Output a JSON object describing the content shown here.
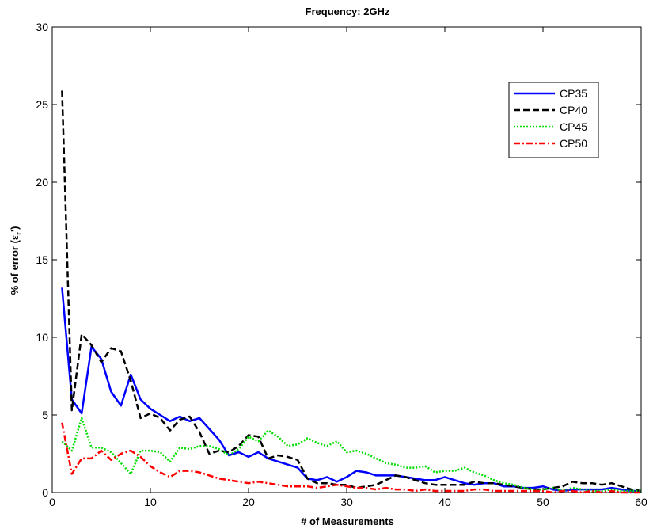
{
  "chart_data": {
    "type": "line",
    "title": "Frequency: 2GHz",
    "xlabel": "# of Measurements",
    "ylabel": "% of error (εr')",
    "ylabel_main": "% of error (ε",
    "ylabel_sub": "r",
    "ylabel_end": "')",
    "xlim": [
      0,
      60
    ],
    "ylim": [
      0,
      30
    ],
    "xticks": [
      0,
      10,
      20,
      30,
      40,
      50,
      60
    ],
    "yticks": [
      0,
      5,
      10,
      15,
      20,
      25,
      30
    ],
    "grid": false,
    "legend_position": "top-right",
    "series": [
      {
        "name": "CP35",
        "color": "#0000ff",
        "style": "solid",
        "x": [
          1,
          2,
          3,
          4,
          5,
          6,
          7,
          8,
          9,
          10,
          11,
          12,
          13,
          14,
          15,
          16,
          17,
          18,
          19,
          20,
          21,
          22,
          23,
          24,
          25,
          26,
          27,
          28,
          29,
          30,
          31,
          32,
          33,
          34,
          35,
          36,
          37,
          38,
          39,
          40,
          41,
          42,
          43,
          44,
          45,
          46,
          47,
          48,
          49,
          50,
          51,
          52,
          53,
          54,
          55,
          56,
          57,
          58,
          59,
          60
        ],
        "values": [
          13.2,
          6.0,
          5.1,
          9.4,
          8.6,
          6.5,
          5.6,
          7.6,
          6.0,
          5.4,
          5.0,
          4.6,
          4.9,
          4.6,
          4.8,
          4.1,
          3.4,
          2.4,
          2.6,
          2.3,
          2.6,
          2.2,
          2.0,
          1.8,
          1.6,
          0.9,
          0.8,
          1.0,
          0.7,
          1.0,
          1.4,
          1.3,
          1.1,
          1.1,
          1.1,
          1.0,
          0.9,
          0.8,
          0.8,
          1.0,
          0.8,
          0.6,
          0.5,
          0.6,
          0.6,
          0.4,
          0.4,
          0.3,
          0.3,
          0.4,
          0.2,
          0.1,
          0.2,
          0.2,
          0.2,
          0.2,
          0.3,
          0.2,
          0.1,
          0.1
        ]
      },
      {
        "name": "CP40",
        "color": "#000000",
        "style": "dashed",
        "x": [
          1,
          2,
          3,
          4,
          5,
          6,
          7,
          8,
          9,
          10,
          11,
          12,
          13,
          14,
          15,
          16,
          17,
          18,
          19,
          20,
          21,
          22,
          23,
          24,
          25,
          26,
          27,
          28,
          29,
          30,
          31,
          32,
          33,
          34,
          35,
          36,
          37,
          38,
          39,
          40,
          41,
          42,
          43,
          44,
          45,
          46,
          47,
          48,
          49,
          50,
          51,
          52,
          53,
          54,
          55,
          56,
          57,
          58,
          59,
          60
        ],
        "values": [
          25.9,
          5.3,
          10.2,
          9.5,
          8.4,
          9.3,
          9.1,
          7.2,
          4.8,
          5.1,
          4.8,
          4.0,
          4.7,
          4.9,
          3.9,
          2.5,
          2.7,
          2.6,
          3.0,
          3.7,
          3.6,
          2.2,
          2.4,
          2.3,
          2.1,
          0.9,
          0.6,
          0.6,
          0.5,
          0.5,
          0.3,
          0.4,
          0.5,
          0.8,
          1.1,
          1.0,
          0.8,
          0.6,
          0.5,
          0.5,
          0.5,
          0.5,
          0.7,
          0.6,
          0.6,
          0.5,
          0.4,
          0.3,
          0.2,
          0.2,
          0.3,
          0.4,
          0.7,
          0.6,
          0.6,
          0.5,
          0.6,
          0.4,
          0.2,
          0.1
        ]
      },
      {
        "name": "CP45",
        "color": "#00dd00",
        "style": "dotted",
        "x": [
          1,
          2,
          3,
          4,
          5,
          6,
          7,
          8,
          9,
          10,
          11,
          12,
          13,
          14,
          15,
          16,
          17,
          18,
          19,
          20,
          21,
          22,
          23,
          24,
          25,
          26,
          27,
          28,
          29,
          30,
          31,
          32,
          33,
          34,
          35,
          36,
          37,
          38,
          39,
          40,
          41,
          42,
          43,
          44,
          45,
          46,
          47,
          48,
          49,
          50,
          51,
          52,
          53,
          54,
          55,
          56,
          57,
          58,
          59,
          60
        ],
        "values": [
          3.3,
          2.7,
          4.8,
          2.9,
          2.9,
          2.6,
          1.9,
          1.2,
          2.7,
          2.7,
          2.6,
          2.0,
          2.9,
          2.8,
          3.0,
          3.0,
          2.8,
          2.4,
          2.8,
          3.6,
          3.3,
          4.0,
          3.6,
          3.0,
          3.1,
          3.5,
          3.2,
          3.0,
          3.3,
          2.6,
          2.7,
          2.5,
          2.2,
          1.9,
          1.8,
          1.6,
          1.6,
          1.7,
          1.3,
          1.4,
          1.4,
          1.6,
          1.3,
          1.1,
          0.8,
          0.6,
          0.5,
          0.3,
          0.2,
          0.2,
          0.3,
          0.1,
          0.3,
          0.2,
          0.1,
          0.1,
          0.2,
          0.1,
          0.1,
          0.1
        ]
      },
      {
        "name": "CP50",
        "color": "#ff0000",
        "style": "dashdot",
        "x": [
          1,
          2,
          3,
          4,
          5,
          6,
          7,
          8,
          9,
          10,
          11,
          12,
          13,
          14,
          15,
          16,
          17,
          18,
          19,
          20,
          21,
          22,
          23,
          24,
          25,
          26,
          27,
          28,
          29,
          30,
          31,
          32,
          33,
          34,
          35,
          36,
          37,
          38,
          39,
          40,
          41,
          42,
          43,
          44,
          45,
          46,
          47,
          48,
          49,
          50,
          51,
          52,
          53,
          54,
          55,
          56,
          57,
          58,
          59,
          60
        ],
        "values": [
          4.5,
          1.2,
          2.2,
          2.2,
          2.7,
          2.1,
          2.5,
          2.7,
          2.3,
          1.7,
          1.3,
          1.0,
          1.4,
          1.4,
          1.3,
          1.1,
          0.9,
          0.8,
          0.7,
          0.6,
          0.7,
          0.6,
          0.5,
          0.4,
          0.4,
          0.4,
          0.3,
          0.4,
          0.5,
          0.4,
          0.3,
          0.3,
          0.2,
          0.3,
          0.2,
          0.2,
          0.1,
          0.2,
          0.1,
          0.1,
          0.1,
          0.1,
          0.2,
          0.2,
          0.1,
          0.1,
          0.1,
          0.1,
          0.1,
          0.1,
          0.0,
          0.1,
          0.1,
          0.0,
          0.1,
          0.0,
          0.1,
          0.0,
          0.0,
          0.0
        ]
      }
    ]
  }
}
